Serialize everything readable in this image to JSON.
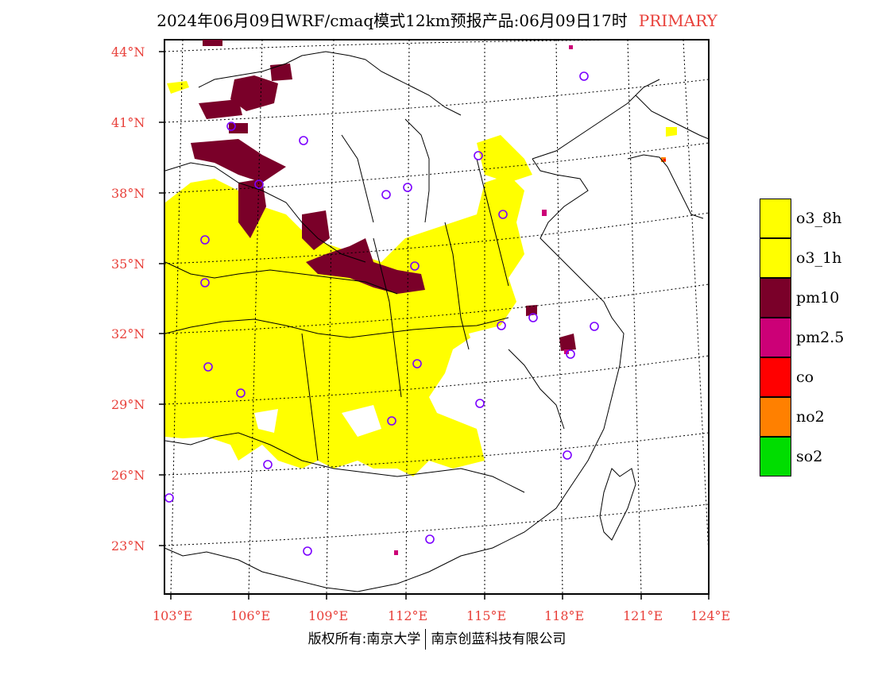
{
  "title": {
    "main": "2024年06月09日WRF/cmaq模式12km预报产品:06月09日17时",
    "tag": "PRIMARY"
  },
  "axes": {
    "latitude_labels": [
      "44°N",
      "41°N",
      "38°N",
      "35°N",
      "32°N",
      "29°N",
      "26°N",
      "23°N"
    ],
    "longitude_labels": [
      "103°E",
      "106°E",
      "109°E",
      "112°E",
      "115°E",
      "118°E",
      "121°E",
      "124°E"
    ]
  },
  "legend": [
    {
      "label": "o3_8h",
      "color": "#ffff00"
    },
    {
      "label": "o3_1h",
      "color": "#ffff00"
    },
    {
      "label": "pm10",
      "color": "#7a0029"
    },
    {
      "label": "pm2.5",
      "color": "#cc0077"
    },
    {
      "label": "co",
      "color": "#ff0000"
    },
    {
      "label": "no2",
      "color": "#ff8000"
    },
    {
      "label": "so2",
      "color": "#00dd00"
    }
  ],
  "copyright": {
    "left": "版权所有:南京大学",
    "right": "南京创蓝科技有限公司"
  }
}
